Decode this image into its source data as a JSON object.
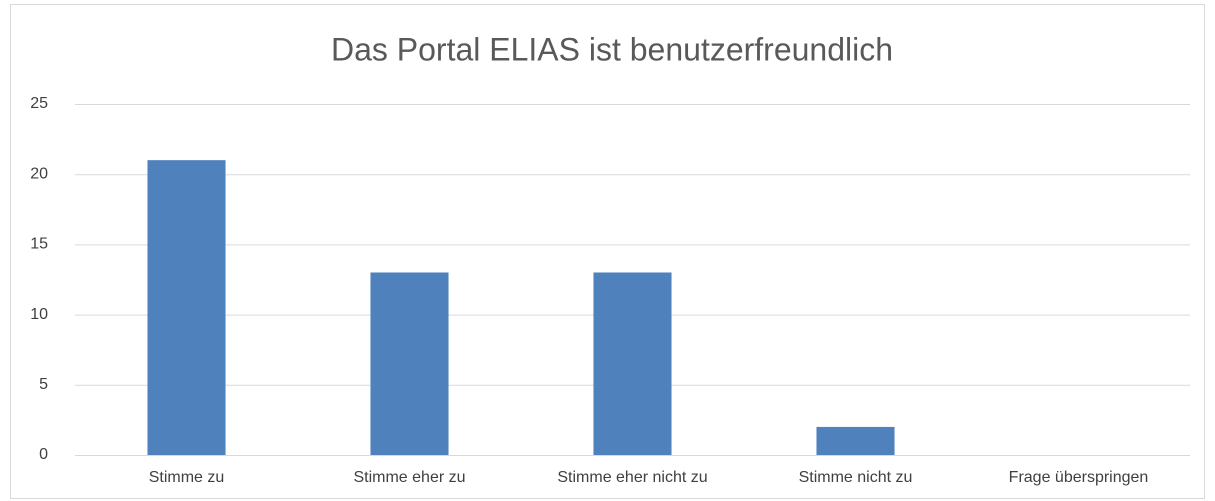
{
  "chart_data": {
    "type": "bar",
    "title": "Das Portal ELIAS ist benutzerfreundlich",
    "categories": [
      "Stimme zu",
      "Stimme eher zu",
      "Stimme eher nicht zu",
      "Stimme nicht zu",
      "Frage überspringen"
    ],
    "values": [
      21,
      13,
      13,
      2,
      0
    ],
    "color": "#4f81bd",
    "ylim": [
      0,
      25
    ],
    "yticks": [
      0,
      5,
      10,
      15,
      20,
      25
    ],
    "grid": true
  }
}
